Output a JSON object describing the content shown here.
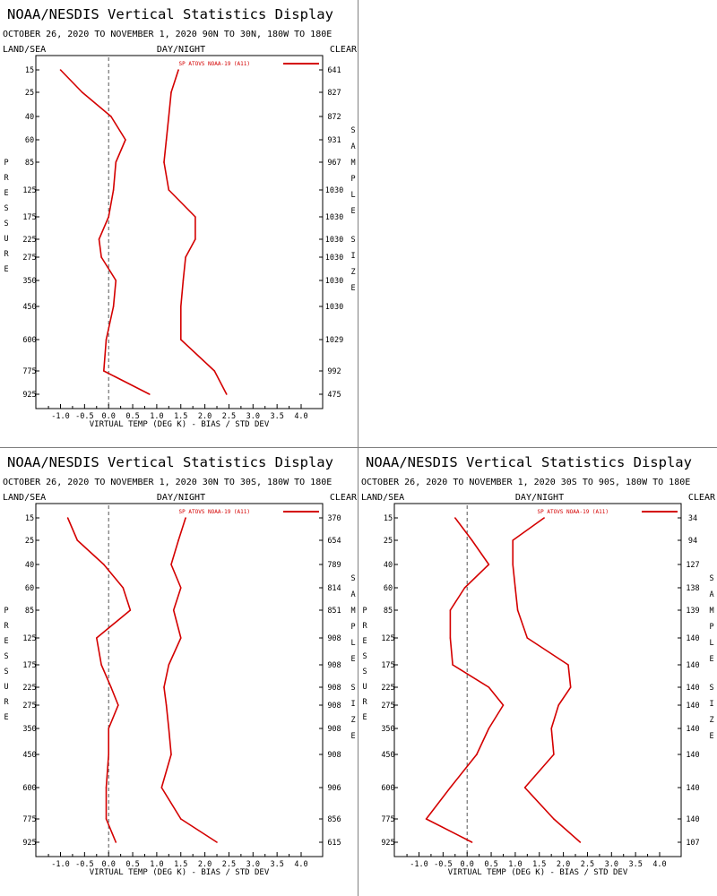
{
  "header": {
    "title": "NOAA/NESDIS Vertical Statistics Display",
    "label_left": "LAND/SEA",
    "label_center": "DAY/NIGHT",
    "label_right": "CLEAR",
    "side_left": "PRESSURE",
    "side_right": "SAMPLE SIZE",
    "xlabel": "VIRTUAL TEMP (DEG K) - BIAS / STD DEV"
  },
  "colors": {
    "series": "#d40000",
    "frame": "#000000",
    "zero_line": "#555555",
    "divider": "#808080"
  },
  "chart_data": [
    {
      "type": "line",
      "subtitle": "OCTOBER 26, 2020 TO NOVEMBER 1, 2020 90N TO 30N, 180W TO 180E",
      "legend": "SP ATOVS NOAA-19 (A11)",
      "xlim": [
        -1.5,
        4.5
      ],
      "xticks": [
        "-1.0",
        "-0.5",
        "0.0",
        "0.5",
        "1.0",
        "1.5",
        "2.0",
        "2.5",
        "3.0",
        "3.5",
        "4.0"
      ],
      "pressure": [
        "15",
        "25",
        "40",
        "60",
        "85",
        "125",
        "175",
        "225",
        "275",
        "350",
        "450",
        "600",
        "775",
        "925"
      ],
      "sample_size": [
        "641",
        "827",
        "872",
        "931",
        "967",
        "1030",
        "1030",
        "1030",
        "1030",
        "1030",
        "1030",
        "1029",
        "992",
        "475"
      ],
      "bias": [
        -1.0,
        -0.55,
        0.05,
        0.35,
        0.15,
        0.1,
        0.0,
        -0.2,
        -0.15,
        0.15,
        0.1,
        -0.05,
        -0.1,
        0.85
      ],
      "std_dev": [
        1.45,
        1.3,
        1.25,
        1.2,
        1.15,
        1.25,
        1.8,
        1.8,
        1.6,
        1.55,
        1.5,
        1.5,
        2.2,
        2.45
      ]
    },
    {
      "type": "line",
      "subtitle": "OCTOBER 26, 2020 TO NOVEMBER 1, 2020 30N TO 30S, 180W TO 180E",
      "legend": "SP ATOVS NOAA-19 (A11)",
      "xlim": [
        -1.5,
        4.5
      ],
      "xticks": [
        "-1.0",
        "-0.5",
        "0.0",
        "0.5",
        "1.0",
        "1.5",
        "2.0",
        "2.5",
        "3.0",
        "3.5",
        "4.0"
      ],
      "pressure": [
        "15",
        "25",
        "40",
        "60",
        "85",
        "125",
        "175",
        "225",
        "275",
        "350",
        "450",
        "600",
        "775",
        "925"
      ],
      "sample_size": [
        "370",
        "654",
        "789",
        "814",
        "851",
        "908",
        "908",
        "908",
        "908",
        "908",
        "908",
        "906",
        "856",
        "615"
      ],
      "bias": [
        -0.85,
        -0.65,
        -0.1,
        0.3,
        0.45,
        -0.25,
        -0.15,
        0.05,
        0.2,
        0.0,
        0.0,
        -0.05,
        -0.05,
        0.15
      ],
      "std_dev": [
        1.6,
        1.45,
        1.3,
        1.5,
        1.35,
        1.5,
        1.25,
        1.15,
        1.2,
        1.25,
        1.3,
        1.1,
        1.5,
        2.25
      ]
    },
    {
      "type": "line",
      "subtitle": "OCTOBER 26, 2020 TO NOVEMBER 1, 2020 30S TO 90S, 180W TO 180E",
      "legend": "SP ATOVS NOAA-19 (A11)",
      "xlim": [
        -1.5,
        4.5
      ],
      "xticks": [
        "-1.0",
        "-0.5",
        "0.0",
        "0.5",
        "1.0",
        "1.5",
        "2.0",
        "2.5",
        "3.0",
        "3.5",
        "4.0"
      ],
      "pressure": [
        "15",
        "25",
        "40",
        "60",
        "85",
        "125",
        "175",
        "225",
        "275",
        "350",
        "450",
        "600",
        "775",
        "925"
      ],
      "sample_size": [
        "34",
        "94",
        "127",
        "138",
        "139",
        "140",
        "140",
        "140",
        "140",
        "140",
        "140",
        "140",
        "140",
        "107"
      ],
      "bias": [
        -0.25,
        0.1,
        0.45,
        -0.05,
        -0.35,
        -0.35,
        -0.3,
        0.45,
        0.75,
        0.45,
        0.2,
        -0.35,
        -0.85,
        0.1
      ],
      "std_dev": [
        1.6,
        0.95,
        0.95,
        1.0,
        1.05,
        1.25,
        2.1,
        2.15,
        1.9,
        1.75,
        1.8,
        1.2,
        1.8,
        2.35
      ]
    }
  ]
}
